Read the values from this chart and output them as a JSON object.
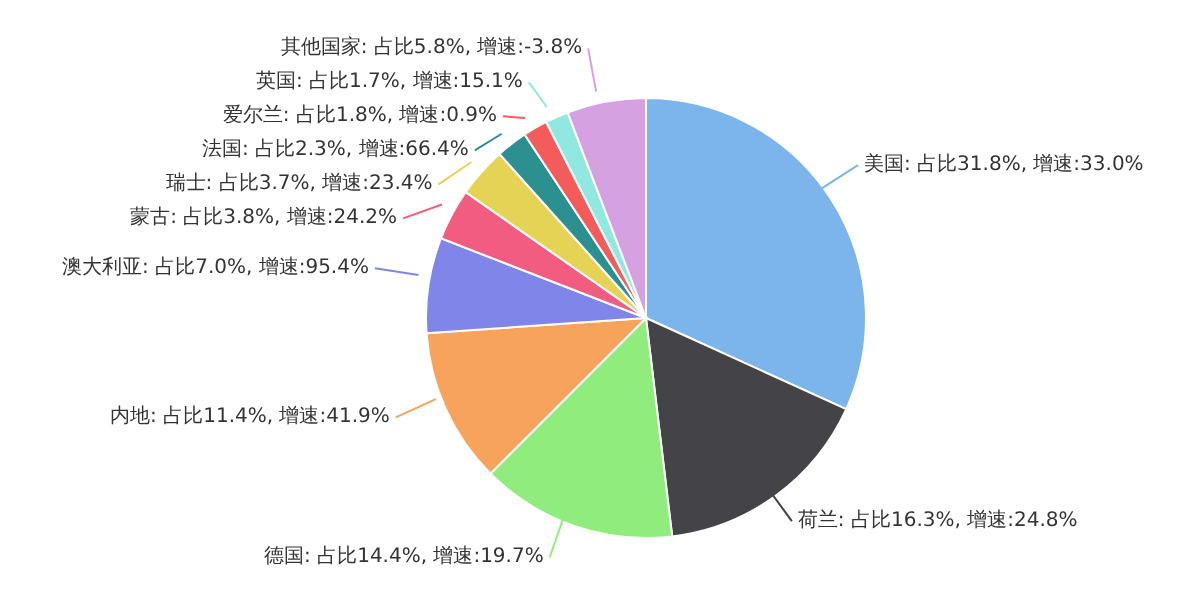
{
  "chart_data": {
    "type": "pie",
    "categories": [
      "美国: 占比31.8%, 增速:33.0%",
      "荷兰: 占比16.3%, 增速:24.8%",
      "德国: 占比14.4%, 增速:19.7%",
      "内地: 占比11.4%, 增速:41.9%",
      "澳大利亚: 占比7.0%, 增速:95.4%",
      "蒙古: 占比3.8%, 增速:24.2%",
      "瑞士: 占比3.7%, 增速:23.4%",
      "法国: 占比2.3%, 增速:66.4%",
      "爱尔兰: 占比1.8%, 增速:0.9%",
      "英国: 占比1.7%, 增速:15.1%",
      "其他国家: 占比5.8%, 增速:-3.8%"
    ],
    "values": [
      31.8,
      16.3,
      14.4,
      11.4,
      7.0,
      3.8,
      3.7,
      2.3,
      1.8,
      1.7,
      5.8
    ],
    "colors": [
      "#7cb5ec",
      "#434348",
      "#90ed7d",
      "#f7a35c",
      "#8085e9",
      "#f15c80",
      "#e4d354",
      "#2b908f",
      "#f45b5b",
      "#91e8e1",
      "#d6a1e0"
    ]
  }
}
